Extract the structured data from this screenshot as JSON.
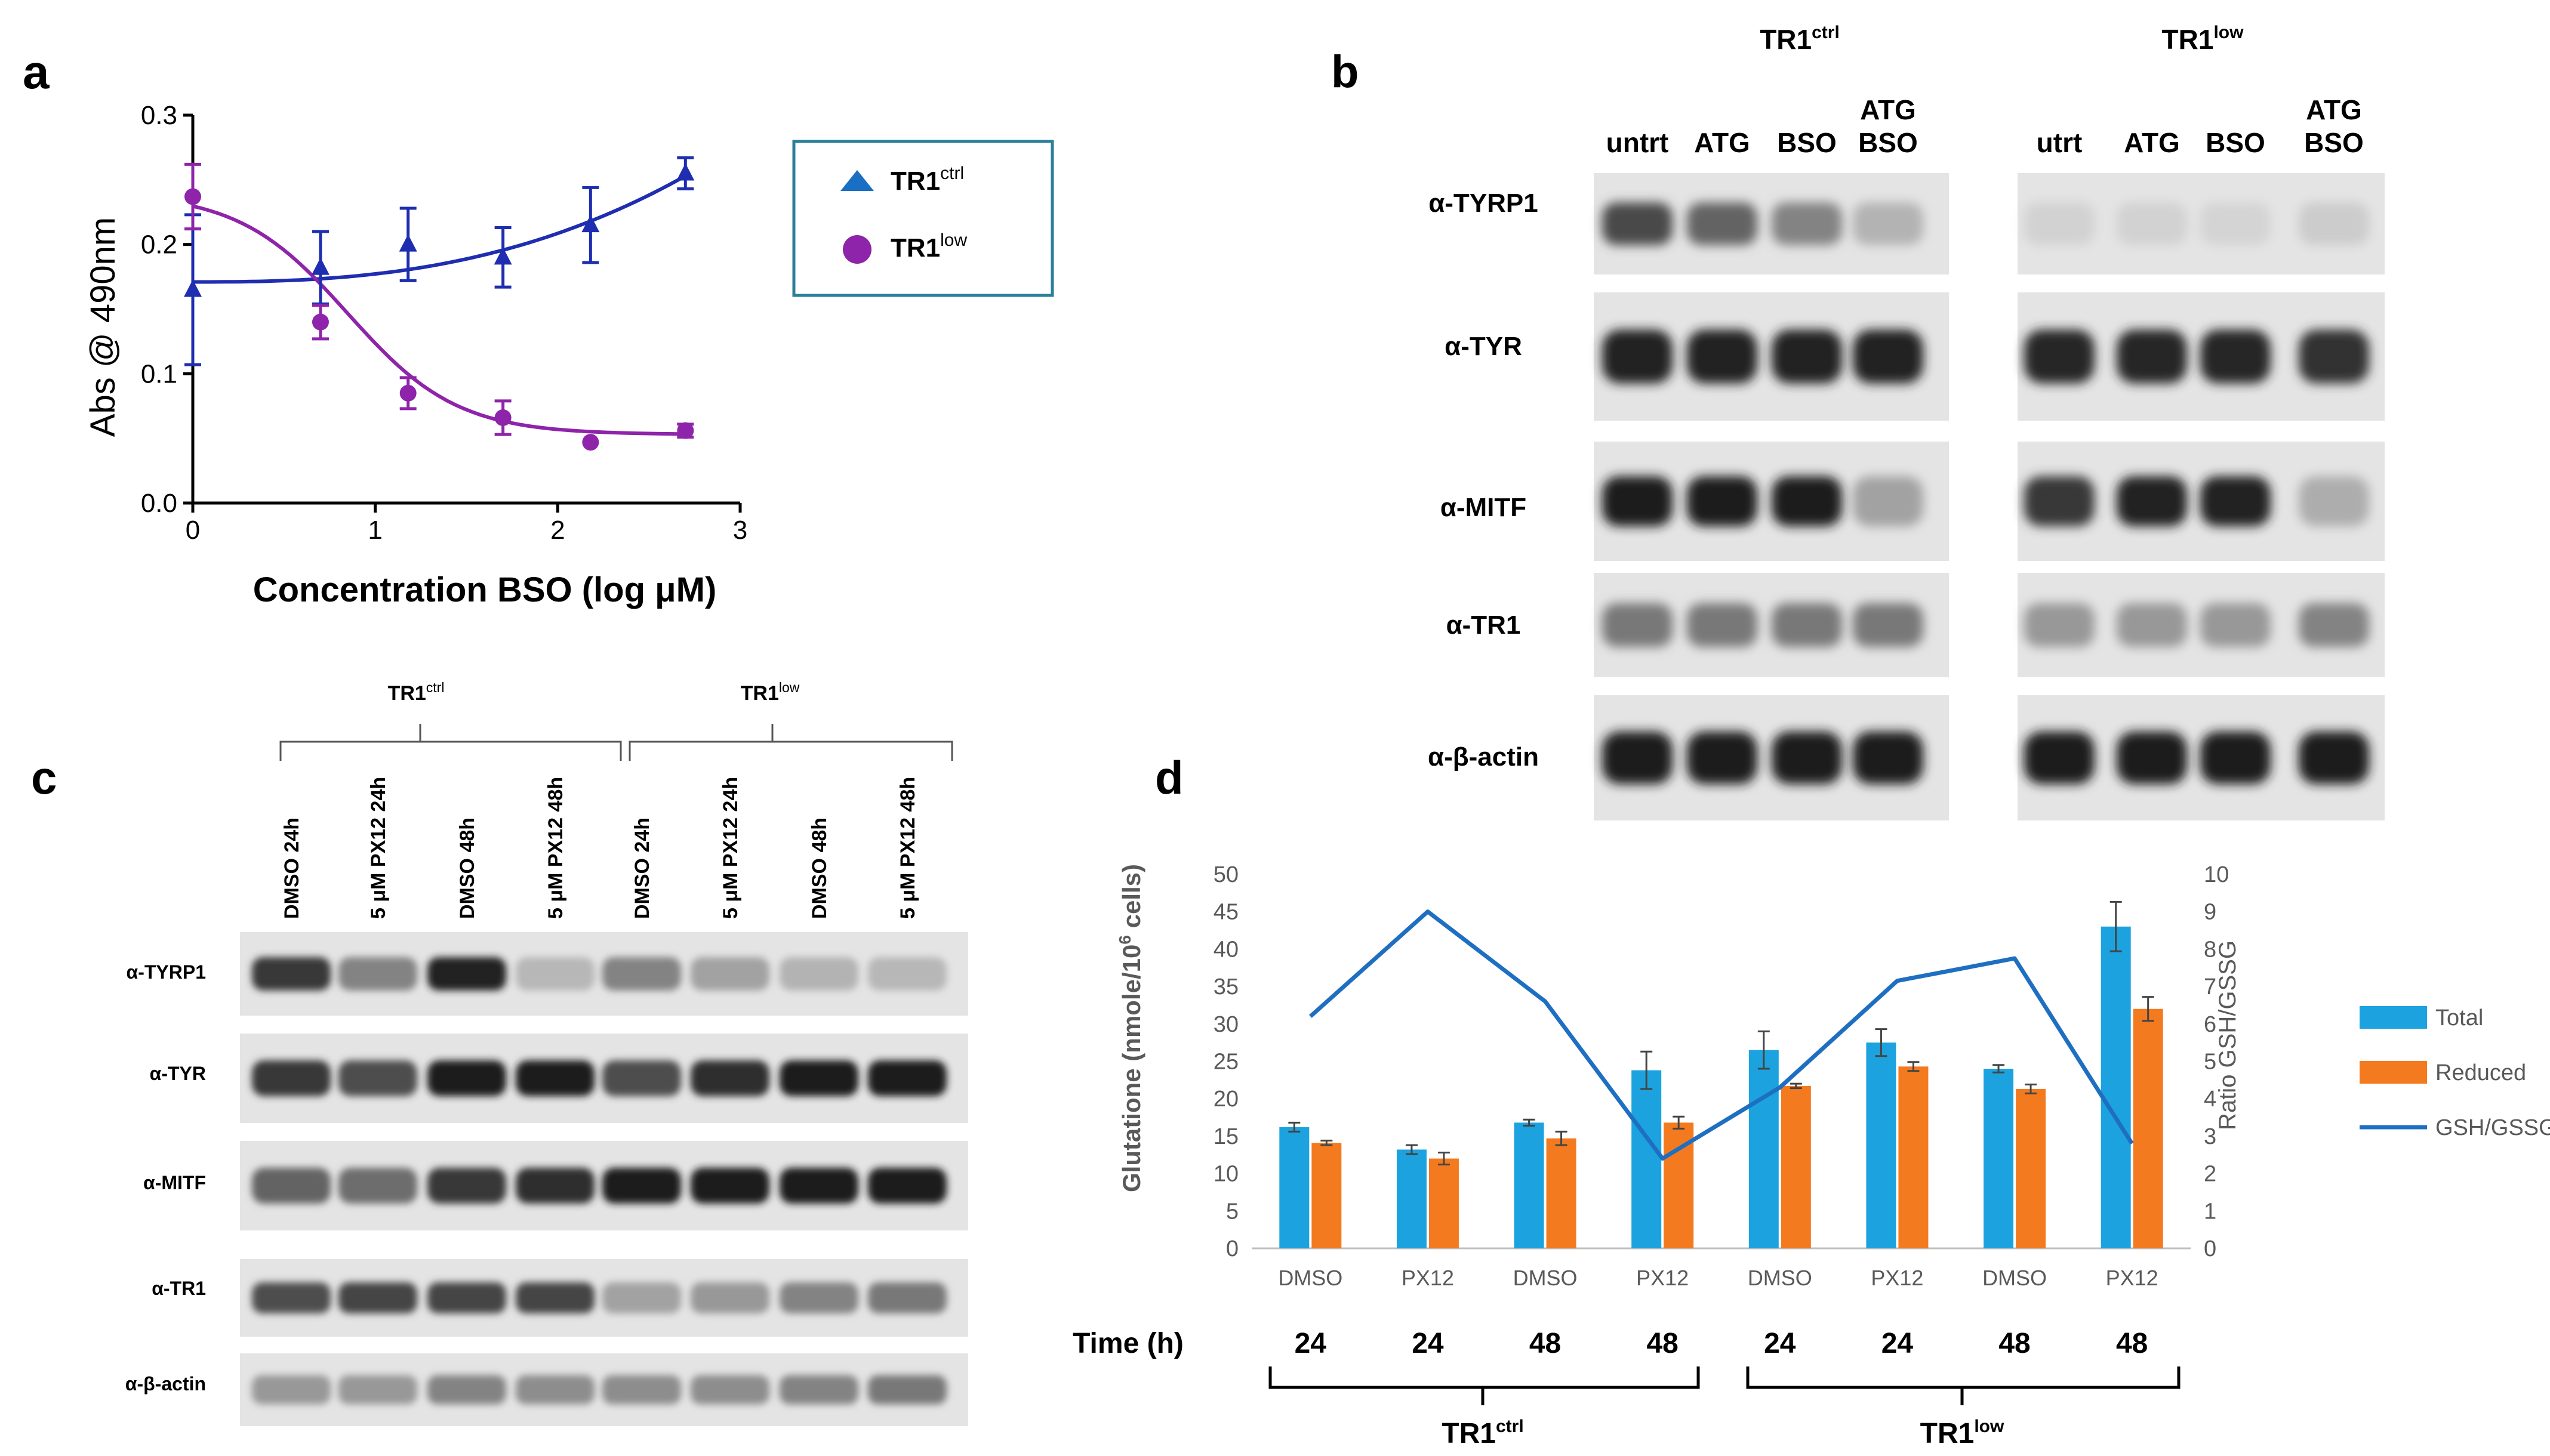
{
  "panel_labels": {
    "a": "a",
    "b": "b",
    "c": "c",
    "d": "d"
  },
  "cell_lines": {
    "ctrl": "TR1",
    "ctrl_sup": "ctrl",
    "low": "TR1",
    "low_sup": "low"
  },
  "colors": {
    "ctrl_curve": "#1f2db0",
    "low_curve": "#8e24aa",
    "ctrl_marker": "#1a6fc4",
    "bar_total": "#1ca3df",
    "bar_reduced": "#f47a20",
    "ratio_line": "#1e6fc1",
    "legend_border": "#2a7f9a"
  },
  "panel_a": {
    "legend": [
      {
        "name": "TR1",
        "sup": "ctrl",
        "marker": "triangle"
      },
      {
        "name": "TR1",
        "sup": "low",
        "marker": "circle"
      }
    ]
  },
  "panel_b": {
    "ctrl_lanes": [
      [
        "untrt"
      ],
      [
        "ATG"
      ],
      [
        "BSO"
      ],
      [
        "ATG",
        "BSO"
      ]
    ],
    "low_lanes": [
      [
        "utrt"
      ],
      [
        "ATG"
      ],
      [
        "BSO"
      ],
      [
        "ATG",
        "BSO"
      ]
    ],
    "rows": [
      {
        "label": "α-TYRP1",
        "ctrl": [
          0.72,
          0.6,
          0.45,
          0.22
        ],
        "low": [
          0.07,
          0.07,
          0.06,
          0.1
        ]
      },
      {
        "label": "α-TYR",
        "ctrl": [
          0.9,
          0.9,
          0.9,
          0.9
        ],
        "low": [
          0.88,
          0.88,
          0.88,
          0.84
        ]
      },
      {
        "label": "α-MITF",
        "ctrl": [
          0.95,
          0.95,
          0.95,
          0.3
        ],
        "low": [
          0.8,
          0.9,
          0.9,
          0.25
        ]
      },
      {
        "label": "α-TR1",
        "ctrl": [
          0.5,
          0.5,
          0.5,
          0.5
        ],
        "low": [
          0.35,
          0.35,
          0.35,
          0.45
        ]
      },
      {
        "label": "α-β-actin",
        "ctrl": [
          0.95,
          0.95,
          0.95,
          0.95
        ],
        "low": [
          0.95,
          0.95,
          0.95,
          0.95
        ]
      }
    ]
  },
  "panel_c": {
    "lanes": [
      "DMSO 24h",
      "5 μM PX12 24h",
      "DMSO 48h",
      "5 μM PX12 48h",
      "DMSO 24h",
      "5 μM PX12 24h",
      "DMSO 48h",
      "5 μM PX12 48h"
    ],
    "rows": [
      {
        "label": "α-TYRP1",
        "intensity": [
          0.8,
          0.45,
          0.9,
          0.2,
          0.45,
          0.3,
          0.22,
          0.2
        ]
      },
      {
        "label": "α-TYR",
        "intensity": [
          0.8,
          0.7,
          0.95,
          0.95,
          0.7,
          0.85,
          0.95,
          0.95
        ]
      },
      {
        "label": "α-MITF",
        "intensity": [
          0.6,
          0.55,
          0.8,
          0.85,
          0.95,
          0.95,
          0.95,
          0.95
        ]
      },
      {
        "label": "α-TR1",
        "intensity": [
          0.7,
          0.75,
          0.75,
          0.75,
          0.3,
          0.35,
          0.45,
          0.5
        ]
      },
      {
        "label": "α-β-actin",
        "intensity": [
          0.35,
          0.35,
          0.45,
          0.4,
          0.4,
          0.4,
          0.45,
          0.5
        ]
      }
    ]
  },
  "chart_data": [
    {
      "panel": "a",
      "type": "scatter",
      "xlabel": "Concentration BSO (log μM)",
      "ylabel": "Abs  @ 490nm",
      "xlim": [
        0,
        3
      ],
      "ylim": [
        0,
        0.3
      ],
      "xticks": [
        "0",
        "1",
        "2",
        "3"
      ],
      "yticks": [
        "0.0",
        "0.1",
        "0.2",
        "0.3"
      ],
      "series": [
        {
          "name": "TR1ctrl",
          "x": [
            0,
            0.7,
            1.18,
            1.7,
            2.18,
            2.7
          ],
          "y": [
            0.165,
            0.182,
            0.2,
            0.19,
            0.215,
            0.255
          ],
          "err": [
            0.058,
            0.028,
            0.028,
            0.023,
            0.029,
            0.012
          ],
          "fit": "increasing"
        },
        {
          "name": "TR1low",
          "x": [
            0,
            0.7,
            1.18,
            1.7,
            2.18,
            2.7
          ],
          "y": [
            0.237,
            0.14,
            0.085,
            0.066,
            0.047,
            0.056
          ],
          "err": [
            0.025,
            0.013,
            0.012,
            0.013,
            0,
            0.005
          ],
          "fit": "sigmoid"
        }
      ]
    },
    {
      "panel": "d",
      "type": "bar",
      "categories": [
        "DMSO",
        "PX12",
        "DMSO",
        "PX12",
        "DMSO",
        "PX12",
        "DMSO",
        "PX12"
      ],
      "time_label": "Time (h)",
      "times": [
        "24",
        "24",
        "48",
        "48",
        "24",
        "24",
        "48",
        "48"
      ],
      "groups": [
        {
          "name": "TR1",
          "sup": "ctrl"
        },
        {
          "name": "TR1",
          "sup": "low"
        }
      ],
      "ylabel": "Glutatione (nmole/10",
      "ylabel_sup": "6",
      "ylabel_end": " cells)",
      "ylim": [
        0,
        50
      ],
      "yticks": [
        "0",
        "5",
        "10",
        "15",
        "20",
        "25",
        "30",
        "35",
        "40",
        "45",
        "50"
      ],
      "y2label": "Ratio GSH/GSSG",
      "y2lim": [
        0,
        10
      ],
      "y2ticks": [
        "0",
        "1",
        "2",
        "3",
        "4",
        "5",
        "6",
        "7",
        "8",
        "9",
        "10"
      ],
      "series": [
        {
          "name": "Total",
          "values": [
            16.2,
            13.2,
            16.8,
            23.8,
            26.5,
            27.5,
            24.0,
            43.0
          ],
          "err": [
            0.6,
            0.6,
            0.4,
            2.5,
            2.5,
            1.8,
            0.5,
            3.3
          ]
        },
        {
          "name": "Reduced",
          "values": [
            14.1,
            12.0,
            14.7,
            16.8,
            21.7,
            24.3,
            21.3,
            32.0
          ],
          "err": [
            0.3,
            0.8,
            0.9,
            0.8,
            0.3,
            0.6,
            0.6,
            1.6
          ]
        },
        {
          "name": "GSH/GSSG",
          "axis": "right",
          "values": [
            6.2,
            9.0,
            6.6,
            2.4,
            4.3,
            7.15,
            7.75,
            2.8
          ]
        }
      ]
    }
  ]
}
